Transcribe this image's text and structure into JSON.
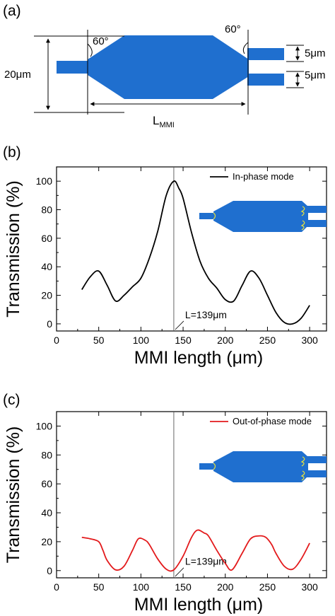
{
  "diagram": {
    "panel_label": "(a)",
    "width_label": "20μm",
    "angle_left": "60°",
    "angle_right": "60°",
    "gap_label_1": "5μm",
    "gap_label_2": "5μm",
    "length_label_main": "L",
    "length_label_sub": "MMI",
    "colors": {
      "device": "#1f6fcf"
    }
  },
  "chart_data": [
    {
      "type": "line",
      "panel_label": "(b)",
      "xlabel": "MMI length (μm)",
      "ylabel": "Transmission (%)",
      "xlim": [
        0,
        320
      ],
      "ylim": [
        -5,
        110
      ],
      "xticks": [
        0,
        50,
        100,
        150,
        200,
        250,
        300
      ],
      "yticks": [
        0,
        20,
        40,
        60,
        80,
        100
      ],
      "legend_position": "top-right",
      "series": [
        {
          "name": "In-phase mode",
          "color": "#000000",
          "x": [
            30,
            40,
            50,
            60,
            70,
            80,
            90,
            100,
            110,
            120,
            130,
            139,
            145,
            150,
            160,
            170,
            180,
            190,
            200,
            210,
            220,
            230,
            240,
            250,
            260,
            270,
            280,
            290,
            300
          ],
          "y": [
            24,
            33,
            37,
            27,
            16,
            20,
            26,
            32,
            46,
            65,
            90,
            100,
            95,
            88,
            64,
            44,
            32,
            25,
            17,
            16,
            27,
            37,
            32,
            20,
            8,
            1,
            0,
            4,
            13
          ]
        }
      ],
      "marker_line": {
        "x": 139,
        "label": "L=139μm"
      }
    },
    {
      "type": "line",
      "panel_label": "(c)",
      "xlabel": "MMI length (μm)",
      "ylabel": "Transmission (%)",
      "xlim": [
        0,
        320
      ],
      "ylim": [
        -5,
        110
      ],
      "xticks": [
        0,
        50,
        100,
        150,
        200,
        250,
        300
      ],
      "yticks": [
        0,
        20,
        40,
        60,
        80,
        100
      ],
      "legend_position": "top-right",
      "series": [
        {
          "name": "Out-of-phase mode",
          "color": "#e31a1c",
          "x": [
            30,
            40,
            50,
            55,
            60,
            70,
            80,
            90,
            97,
            105,
            110,
            120,
            130,
            139,
            150,
            160,
            167,
            175,
            180,
            190,
            200,
            208,
            220,
            230,
            240,
            248,
            255,
            260,
            270,
            280,
            290,
            300
          ],
          "y": [
            23,
            22,
            20,
            14,
            7,
            0.5,
            3,
            14,
            22,
            21,
            18,
            8,
            1,
            0.5,
            10,
            23,
            28,
            26,
            24,
            14,
            5,
            0.5,
            12,
            22,
            24,
            23,
            18,
            12,
            3,
            1,
            8,
            19
          ]
        }
      ],
      "marker_line": {
        "x": 139,
        "label": "L=139μm"
      }
    }
  ]
}
